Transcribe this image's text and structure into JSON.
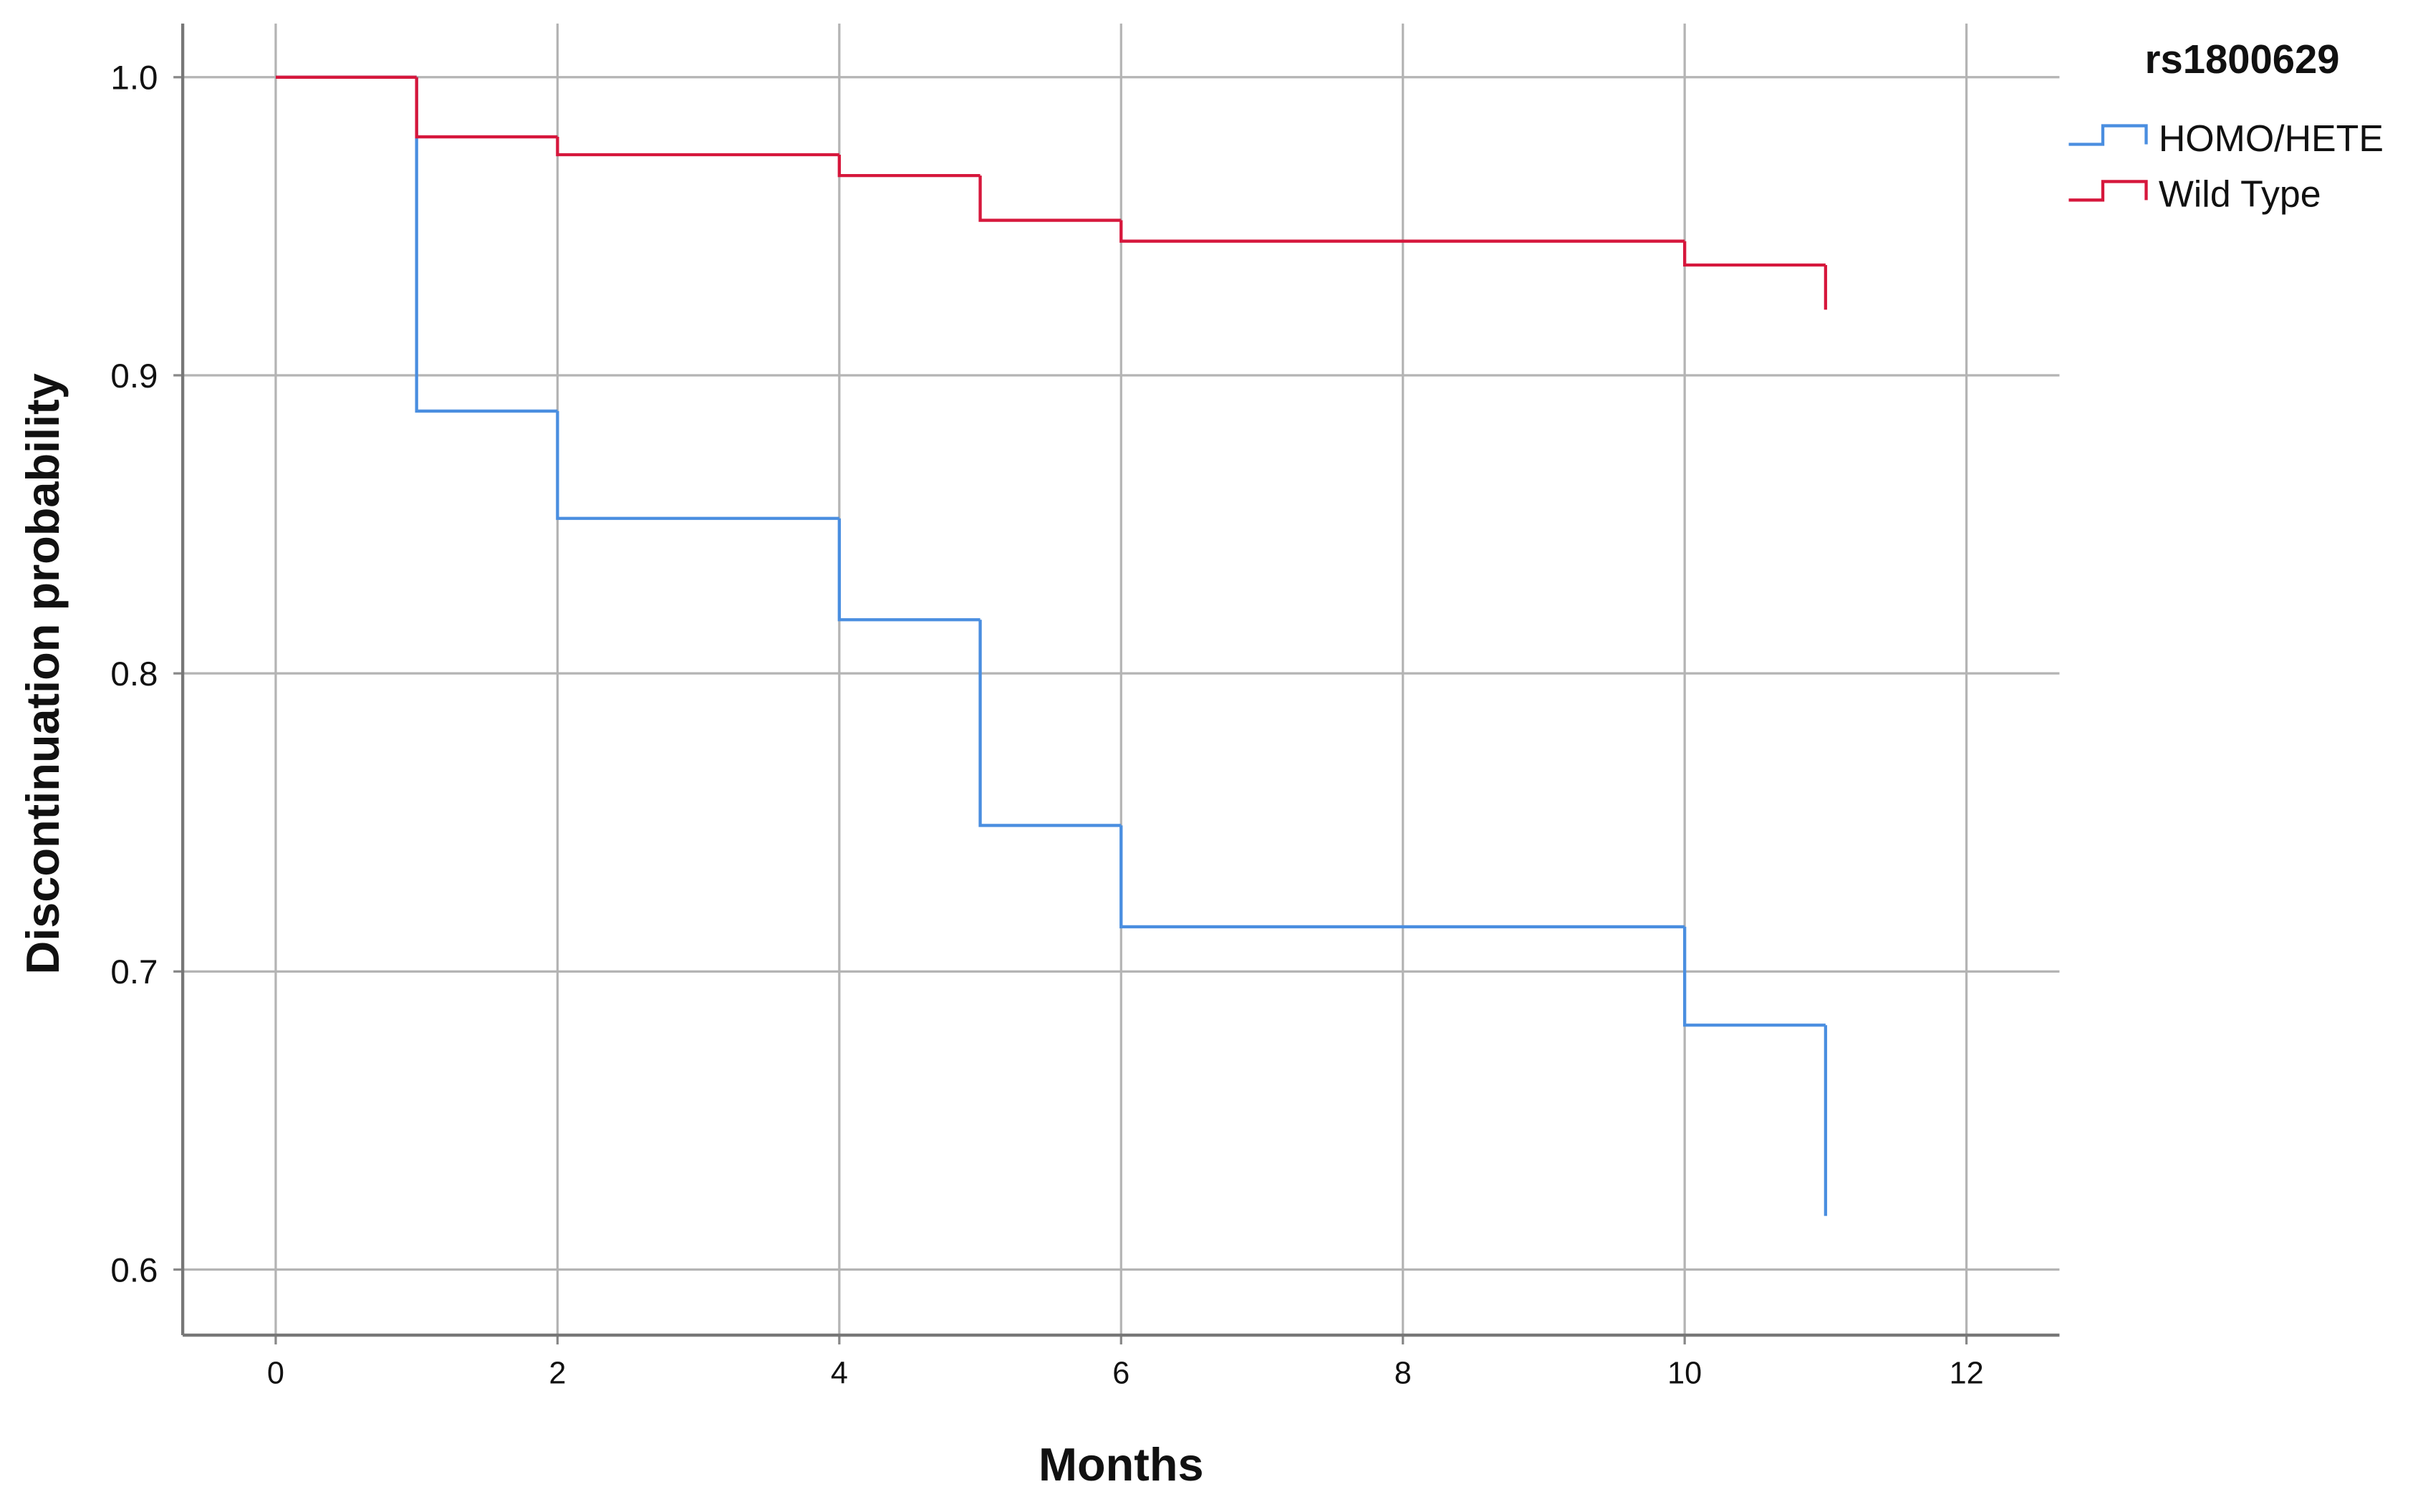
{
  "chart_data": {
    "type": "step",
    "xlabel": "Months",
    "ylabel": "Discontinuation probability",
    "legend_title": "rs1800629",
    "legend_position": "upper right outside",
    "grid": true,
    "xlim": [
      -0.66,
      12.66
    ],
    "ylim": [
      0.578,
      1.018
    ],
    "xticks": [
      0,
      2,
      4,
      6,
      8,
      10,
      12
    ],
    "yticks": [
      0.6,
      0.7,
      0.8,
      0.9,
      {
        "value": 1,
        "label": "1.0"
      }
    ],
    "series": [
      {
        "name": "HOMO/HETE",
        "color": "#4a8ee0",
        "x": [
          0,
          1,
          2,
          4,
          5,
          6,
          10,
          11
        ],
        "values": [
          1,
          0.888,
          0.852,
          0.818,
          0.749,
          0.715,
          0.682,
          0.618
        ]
      },
      {
        "name": "Wild Type",
        "color": "#d6173c",
        "x": [
          0,
          1,
          2,
          4,
          5,
          6,
          10,
          11
        ],
        "values": [
          1,
          0.98,
          0.974,
          0.967,
          0.952,
          0.945,
          0.937,
          0.922
        ]
      }
    ]
  }
}
